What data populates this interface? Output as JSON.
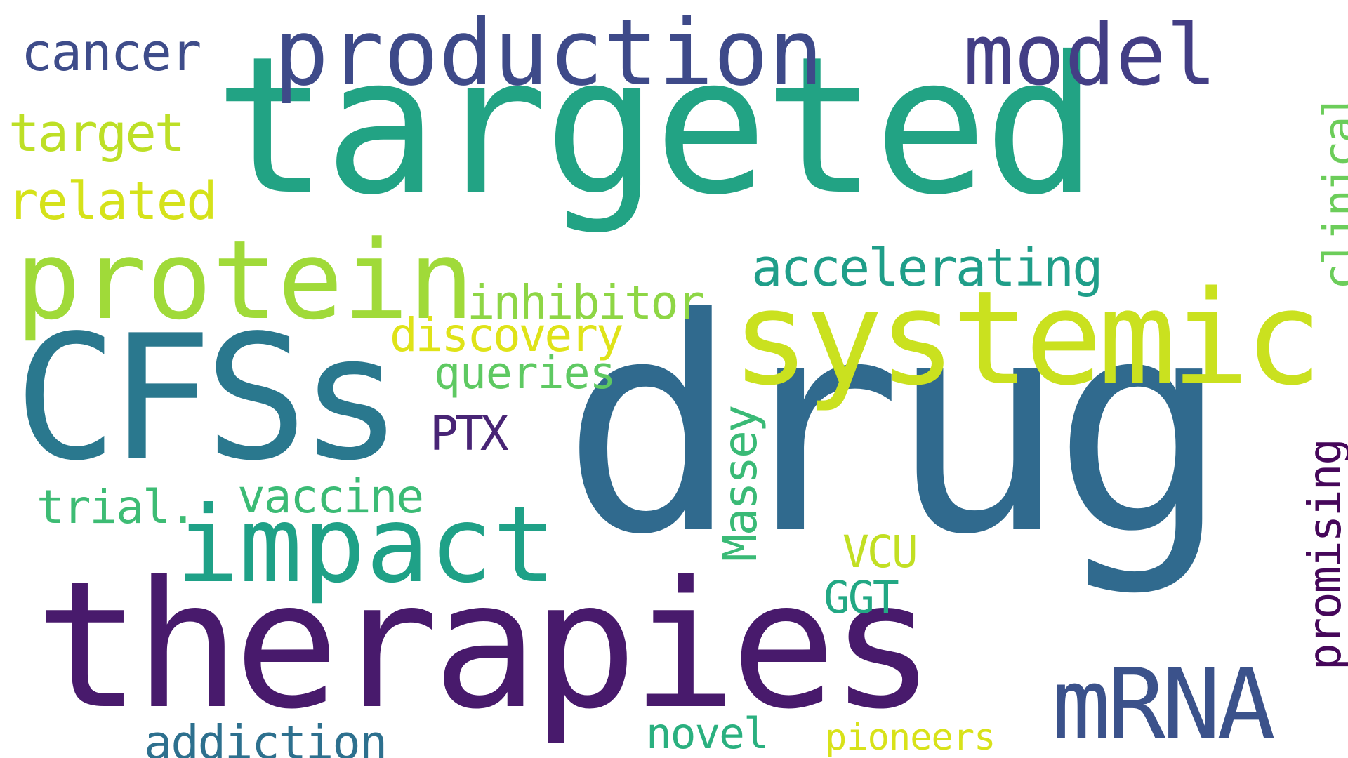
{
  "words": {
    "targeted": {
      "text": "targeted",
      "color": "#22a384"
    },
    "drug": {
      "text": "drug",
      "color": "#306a8e"
    },
    "therapies": {
      "text": "therapies",
      "color": "#481a6c"
    },
    "systemic": {
      "text": "systemic",
      "color": "#cae11f"
    },
    "cfss": {
      "text": "CFSs",
      "color": "#2a788e"
    },
    "production": {
      "text": "production",
      "color": "#3e4a89"
    },
    "protein": {
      "text": "protein",
      "color": "#a0da39"
    },
    "impact": {
      "text": "impact",
      "color": "#1fa187"
    },
    "model": {
      "text": "model",
      "color": "#433e85"
    },
    "mrna": {
      "text": "mRNA",
      "color": "#3b528b"
    },
    "cancer": {
      "text": "cancer",
      "color": "#3e4c8a"
    },
    "target": {
      "text": "target",
      "color": "#bddf26"
    },
    "related": {
      "text": "related",
      "color": "#d5e21a"
    },
    "accelerating": {
      "text": "accelerating",
      "color": "#1f9e89"
    },
    "inhibitor": {
      "text": "inhibitor",
      "color": "#8ed645"
    },
    "discovery": {
      "text": "discovery",
      "color": "#dfe318"
    },
    "queries": {
      "text": "queries",
      "color": "#5ec962"
    },
    "ptx": {
      "text": "PTX",
      "color": "#482475"
    },
    "trial": {
      "text": "trial.",
      "color": "#3dbc74"
    },
    "vaccine": {
      "text": "vaccine",
      "color": "#3bbb75"
    },
    "vcu": {
      "text": "VCU",
      "color": "#c2df23"
    },
    "ggt": {
      "text": "GGT",
      "color": "#22a884"
    },
    "addiction": {
      "text": "addiction",
      "color": "#2d708e"
    },
    "novel": {
      "text": "novel",
      "color": "#2ab07f"
    },
    "pioneers": {
      "text": "pioneers",
      "color": "#d8e219"
    },
    "massey": {
      "text": "Massey",
      "color": "#3aba76"
    },
    "promising": {
      "text": "promising",
      "color": "#46075a"
    },
    "clinical": {
      "text": "clinical",
      "color": "#6ccd5a"
    }
  }
}
